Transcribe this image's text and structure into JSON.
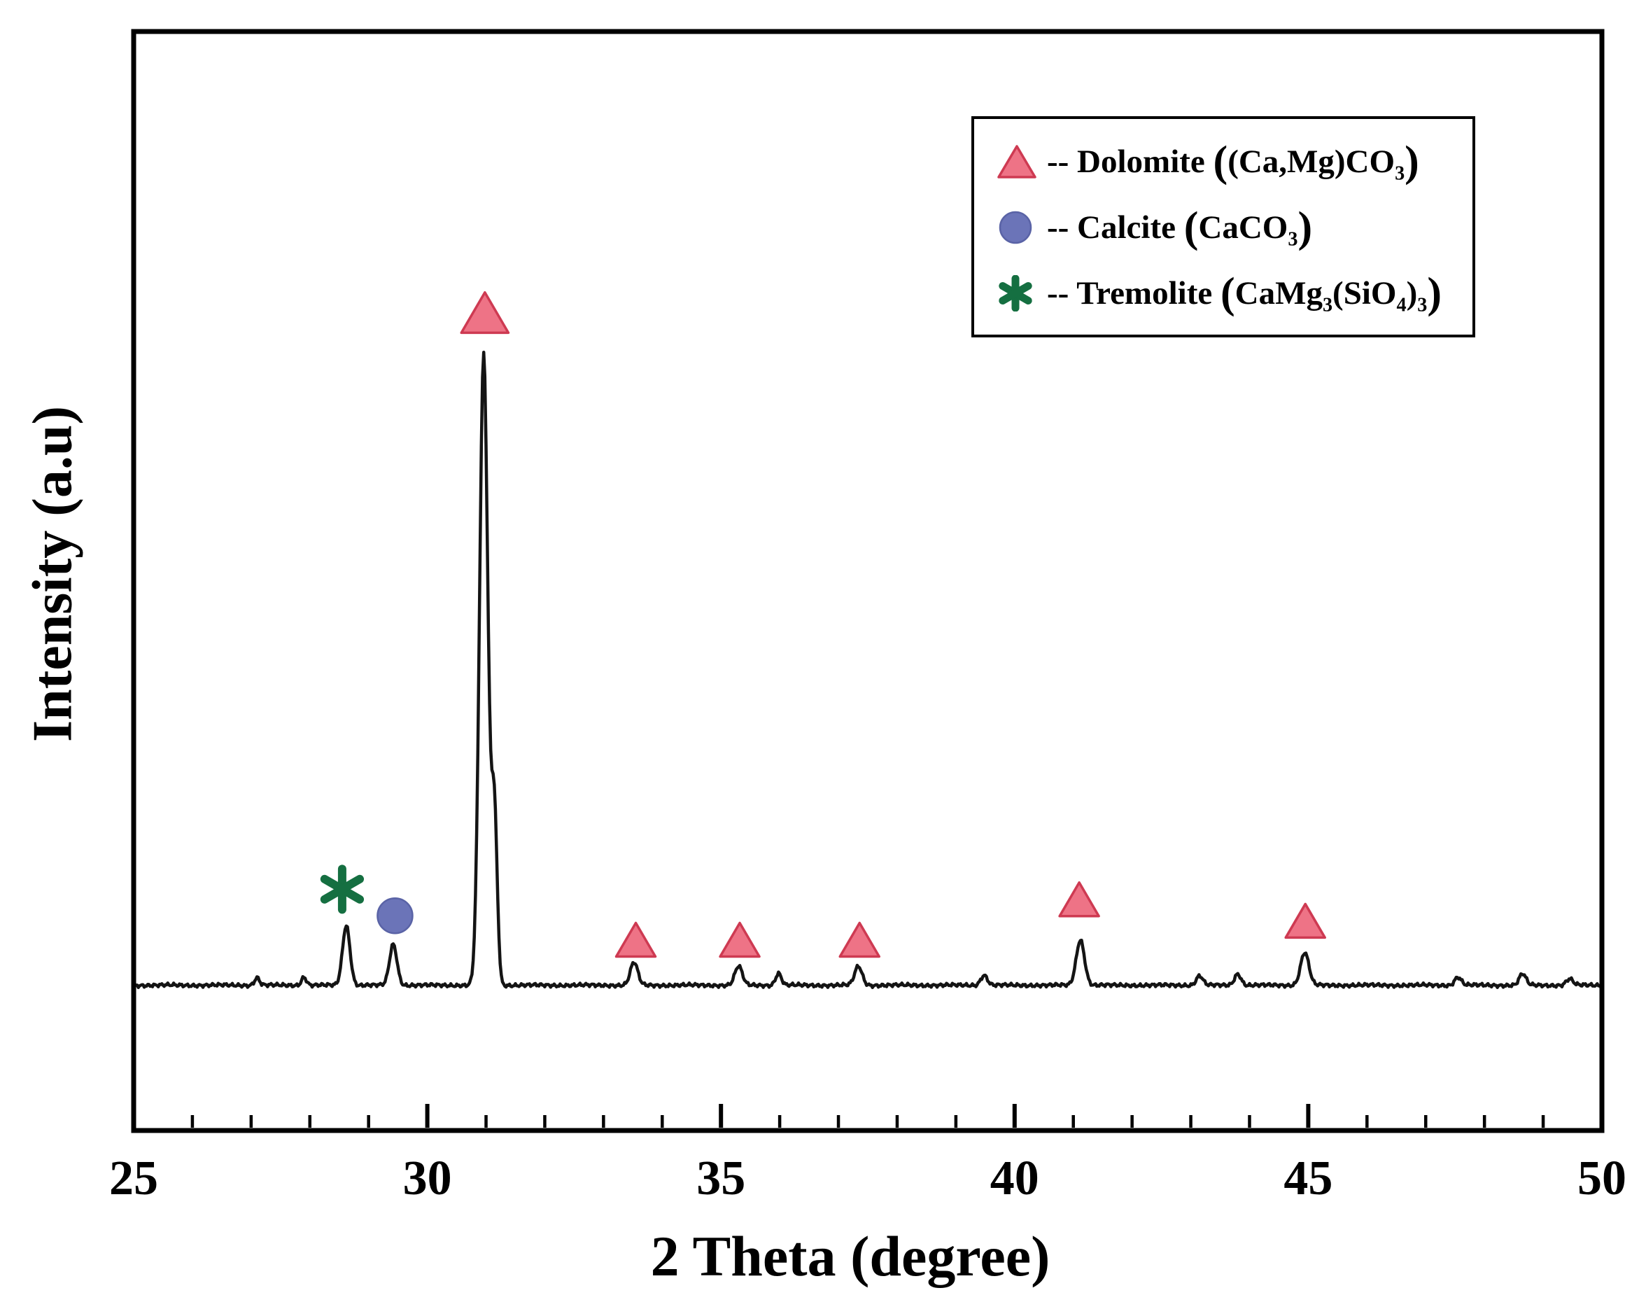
{
  "legend": {
    "items": [
      {
        "phase": "dolomite",
        "label": "Dolomite",
        "marker": "triangle-icon",
        "fill": "#EE7386",
        "stroke": "#CE3A52",
        "segments": [
          {
            "t": "-- Dolomite "
          },
          {
            "b": "("
          },
          {
            "t": "(Ca,Mg)CO"
          },
          {
            "s": "3"
          },
          {
            "b": ")"
          }
        ]
      },
      {
        "phase": "calcite",
        "label": "Calcite",
        "marker": "circle-icon",
        "fill": "#6B74B8",
        "stroke": "#5A63A6",
        "segments": [
          {
            "t": "-- Calcite "
          },
          {
            "b": "("
          },
          {
            "t": "CaCO"
          },
          {
            "s": "3"
          },
          {
            "b": ")"
          }
        ]
      },
      {
        "phase": "tremolite",
        "label": "Tremolite",
        "marker": "asterisk-icon",
        "fill": "#156F41",
        "stroke": "#156F41",
        "segments": [
          {
            "t": "-- Tremolite "
          },
          {
            "b": "("
          },
          {
            "t": "CaMg"
          },
          {
            "s": "3"
          },
          {
            "t": "(SiO"
          },
          {
            "s": "4"
          },
          {
            "t": ")"
          },
          {
            "s": "3"
          },
          {
            "b": ")"
          }
        ]
      }
    ]
  },
  "chart_data": {
    "type": "line",
    "title": "",
    "xlabel": "2 Theta (degree)",
    "ylabel": "Intensity (a.u)",
    "xlim": [
      25,
      50
    ],
    "ylim": [
      -23,
      151
    ],
    "x_ticks": [
      25,
      30,
      35,
      40,
      45,
      50
    ],
    "x_minor_step": 1,
    "grid": false,
    "legend_position": "top-right",
    "line_color": "#141414",
    "baseline_intensity": 0,
    "peaks": [
      {
        "two_theta": 27.1,
        "height": 1.2,
        "width": 0.06
      },
      {
        "two_theta": 27.9,
        "height": 1.3,
        "width": 0.06
      },
      {
        "two_theta": 28.62,
        "height": 9.5,
        "width": 0.09,
        "phase": "tremolite"
      },
      {
        "two_theta": 29.42,
        "height": 6.5,
        "width": 0.09,
        "phase": "calcite"
      },
      {
        "two_theta": 30.96,
        "height": 100,
        "width": 0.1,
        "phase": "dolomite"
      },
      {
        "two_theta": 31.14,
        "height": 28,
        "width": 0.07
      },
      {
        "two_theta": 33.52,
        "height": 3.6,
        "width": 0.09,
        "phase": "dolomite"
      },
      {
        "two_theta": 35.3,
        "height": 3.0,
        "width": 0.09,
        "phase": "dolomite"
      },
      {
        "two_theta": 35.98,
        "height": 1.9,
        "width": 0.07
      },
      {
        "two_theta": 37.34,
        "height": 3.0,
        "width": 0.09,
        "phase": "dolomite"
      },
      {
        "two_theta": 39.48,
        "height": 1.6,
        "width": 0.08
      },
      {
        "two_theta": 41.12,
        "height": 7.2,
        "width": 0.1,
        "phase": "dolomite"
      },
      {
        "two_theta": 43.15,
        "height": 1.5,
        "width": 0.08
      },
      {
        "two_theta": 43.8,
        "height": 1.8,
        "width": 0.08
      },
      {
        "two_theta": 44.94,
        "height": 5.2,
        "width": 0.1,
        "phase": "dolomite"
      },
      {
        "two_theta": 47.55,
        "height": 1.3,
        "width": 0.08
      },
      {
        "two_theta": 48.65,
        "height": 1.8,
        "width": 0.08
      },
      {
        "two_theta": 49.45,
        "height": 1.0,
        "width": 0.08
      }
    ],
    "markers": [
      {
        "phase": "dolomite",
        "shape": "triangle",
        "x": 30.98,
        "y": 106.5,
        "size": 1.2
      },
      {
        "phase": "tremolite",
        "shape": "asterisk",
        "x": 28.55,
        "y": 15.2,
        "size": 1
      },
      {
        "phase": "calcite",
        "shape": "circle",
        "x": 29.45,
        "y": 11.0,
        "size": 1
      },
      {
        "phase": "dolomite",
        "shape": "triangle",
        "x": 33.55,
        "y": 7.2,
        "size": 1
      },
      {
        "phase": "dolomite",
        "shape": "triangle",
        "x": 35.32,
        "y": 7.2,
        "size": 1
      },
      {
        "phase": "dolomite",
        "shape": "triangle",
        "x": 37.36,
        "y": 7.2,
        "size": 1
      },
      {
        "phase": "dolomite",
        "shape": "triangle",
        "x": 41.1,
        "y": 13.6,
        "size": 1
      },
      {
        "phase": "dolomite",
        "shape": "triangle",
        "x": 44.95,
        "y": 10.2,
        "size": 1
      }
    ]
  }
}
